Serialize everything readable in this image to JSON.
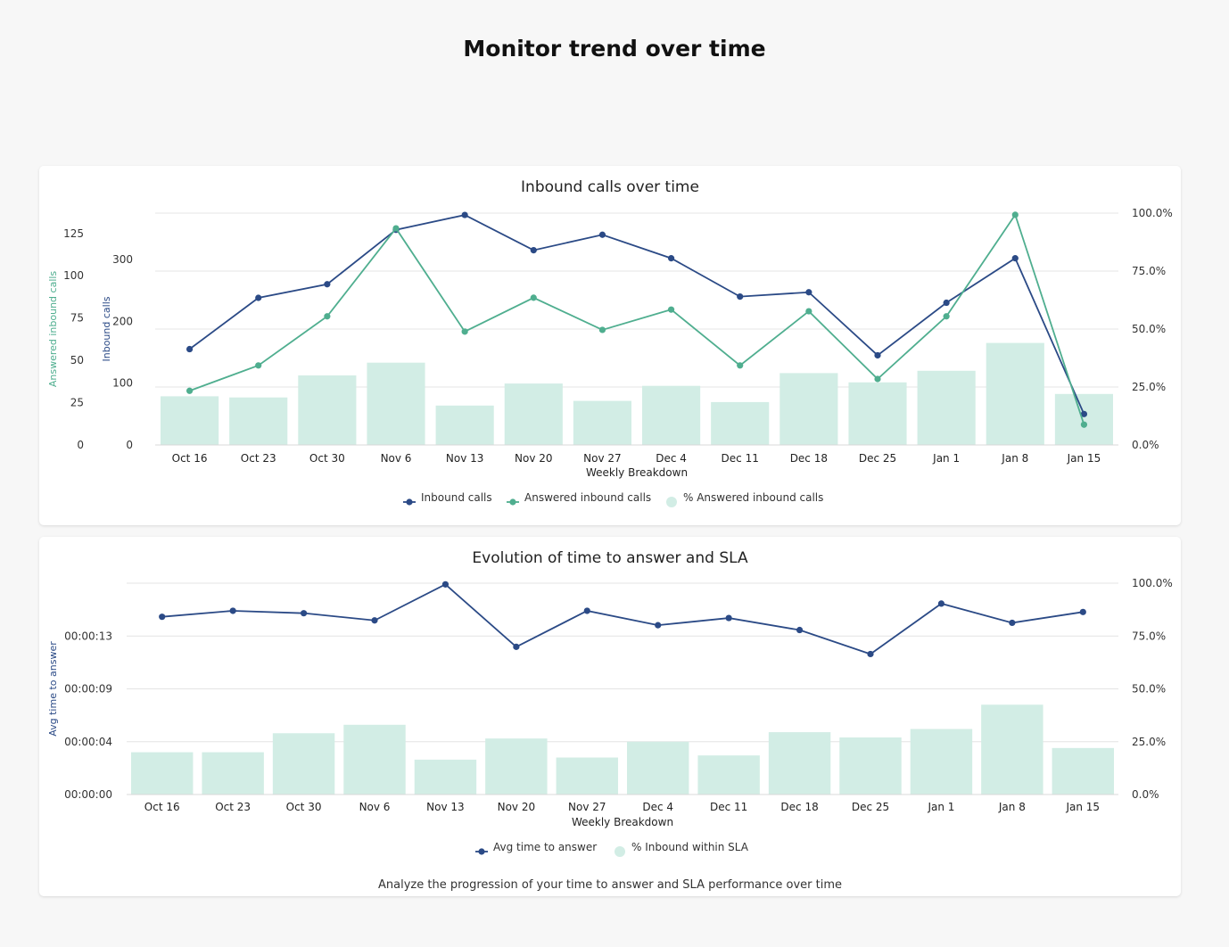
{
  "page": {
    "title": "Monitor trend over time"
  },
  "colors": {
    "navy": "#2b4a86",
    "green": "#4fae8f",
    "bar": "#d2ede5",
    "grid": "#e4e4e4"
  },
  "chart_data": [
    {
      "id": "inbound",
      "type": "line",
      "title": "Inbound calls over time",
      "xlabel": "Weekly Breakdown",
      "categories": [
        "Oct 16",
        "Oct 23",
        "Oct 30",
        "Nov 6",
        "Nov 13",
        "Nov 20",
        "Nov 27",
        "Dec 4",
        "Dec 11",
        "Dec 18",
        "Dec 25",
        "Jan 1",
        "Jan 8",
        "Jan 15"
      ],
      "axes": {
        "y_outer": {
          "label": "Answered inbound calls",
          "ticks": [
            "0",
            "25",
            "50",
            "75",
            "100",
            "125"
          ],
          "range": [
            0,
            137
          ]
        },
        "y_inner": {
          "label": "Inbound calls",
          "ticks": [
            "0",
            "100",
            "200",
            "300"
          ],
          "range": [
            0,
            375
          ]
        },
        "y_right": {
          "ticks": [
            "0.0%",
            "25.0%",
            "50.0%",
            "75.0%",
            "100.0%"
          ],
          "range": [
            0,
            100
          ]
        }
      },
      "series": [
        {
          "name": "Inbound calls",
          "kind": "line",
          "axis": "y_inner",
          "color": "#2b4a86",
          "values": [
            155,
            238,
            260,
            348,
            372,
            315,
            340,
            302,
            240,
            247,
            145,
            230,
            302,
            50
          ]
        },
        {
          "name": "Answered inbound calls",
          "kind": "line",
          "axis": "y_outer",
          "color": "#4fae8f",
          "values": [
            32,
            47,
            76,
            128,
            67,
            87,
            68,
            80,
            47,
            79,
            39,
            76,
            136,
            12
          ]
        },
        {
          "name": "% Answered inbound calls",
          "kind": "bar",
          "axis": "y_right",
          "color": "#d2ede5",
          "values": [
            21,
            20.5,
            30,
            35.5,
            17,
            26.5,
            19,
            25.5,
            18.5,
            31,
            27,
            32,
            44,
            22
          ]
        }
      ],
      "legend": {
        "position": "bottom",
        "items": [
          "Inbound calls",
          "Answered inbound calls",
          "% Answered inbound calls"
        ]
      },
      "grid": true
    },
    {
      "id": "sla",
      "type": "line",
      "title": "Evolution of time to answer and SLA",
      "xlabel": "Weekly Breakdown",
      "categories": [
        "Oct 16",
        "Oct 23",
        "Oct 30",
        "Nov 6",
        "Nov 13",
        "Nov 20",
        "Nov 27",
        "Dec 4",
        "Dec 11",
        "Dec 18",
        "Dec 25",
        "Jan 1",
        "Jan 8",
        "Jan 15"
      ],
      "axes": {
        "y_left": {
          "label": "Avg time to answer",
          "ticks": [
            "00:00:00",
            "00:00:04",
            "00:00:09",
            "00:00:13"
          ],
          "range": [
            0,
            17.6
          ]
        },
        "y_right": {
          "ticks": [
            "0.0%",
            "25.0%",
            "50.0%",
            "75.0%",
            "100.0%"
          ],
          "range": [
            0,
            100
          ]
        }
      },
      "series": [
        {
          "name": "Avg time to answer",
          "kind": "line",
          "axis": "y_left",
          "color": "#2b4a86",
          "unit": "seconds",
          "values": [
            14.8,
            15.3,
            15.1,
            14.5,
            17.5,
            12.3,
            15.3,
            14.1,
            14.7,
            13.7,
            11.7,
            15.9,
            14.3,
            15.2
          ]
        },
        {
          "name": "% Inbound within SLA",
          "kind": "bar",
          "axis": "y_right",
          "color": "#d2ede5",
          "values": [
            20,
            20,
            29,
            33,
            16.5,
            26.5,
            17.5,
            25,
            18.5,
            29.5,
            27,
            31,
            42.5,
            22
          ]
        }
      ],
      "legend": {
        "position": "bottom",
        "items": [
          "Avg time to answer",
          "% Inbound within SLA"
        ]
      },
      "grid": true,
      "footer": "Analyze the progression of your time to answer and SLA performance over time"
    }
  ]
}
